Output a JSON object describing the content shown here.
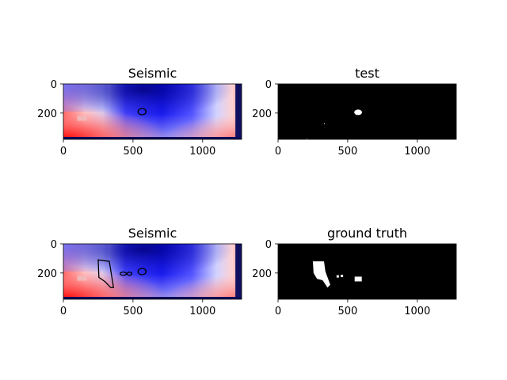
{
  "chart_data": [
    {
      "type": "heatmap",
      "title": "Seismic",
      "colormap": "seismic",
      "xlim": [
        0,
        1280
      ],
      "ylim": [
        380,
        0
      ],
      "xticks": [
        0,
        500,
        1000
      ],
      "yticks": [
        0,
        200
      ],
      "overlay": "contour"
    },
    {
      "type": "heatmap",
      "title": "test",
      "colormap": "binary",
      "xlim": [
        0,
        1280
      ],
      "ylim": [
        380,
        0
      ],
      "xticks": [
        0,
        500,
        1000
      ],
      "yticks": [
        0,
        200
      ]
    },
    {
      "type": "heatmap",
      "title": "Seismic",
      "colormap": "seismic",
      "xlim": [
        0,
        1280
      ],
      "ylim": [
        380,
        0
      ],
      "xticks": [
        0,
        500,
        1000
      ],
      "yticks": [
        0,
        200
      ],
      "overlay": "contour"
    },
    {
      "type": "heatmap",
      "title": "ground truth",
      "colormap": "binary",
      "xlim": [
        0,
        1280
      ],
      "ylim": [
        380,
        0
      ],
      "xticks": [
        0,
        500,
        1000
      ],
      "yticks": [
        0,
        200
      ]
    }
  ]
}
